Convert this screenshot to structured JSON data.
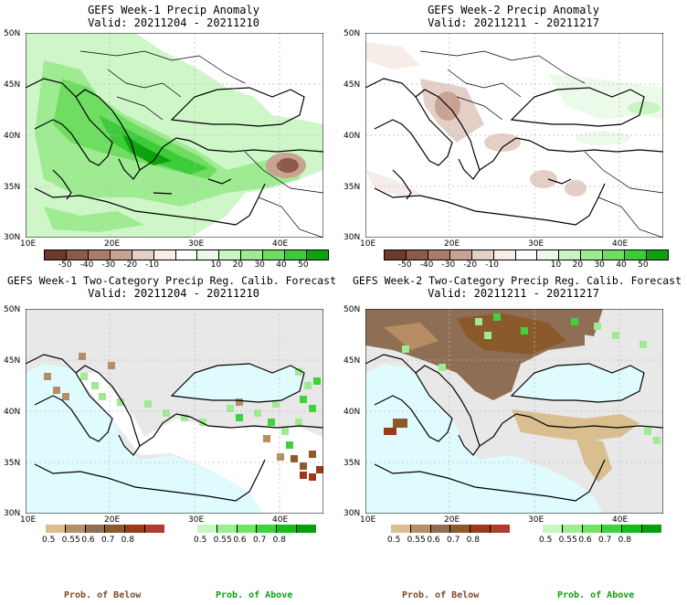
{
  "panels": [
    {
      "title": "GEFS Week-1 Precip Anomaly",
      "valid": "Valid: 20211204 - 20211210"
    },
    {
      "title": "GEFS Week-2 Precip Anomaly",
      "valid": "Valid: 20211211 - 20211217"
    },
    {
      "title": "GEFS Week-1 Two-Category Precip Reg. Calib. Forecast",
      "valid": "Valid: 20211204 - 20211210"
    },
    {
      "title": "GEFS Week-2 Two-Category Precip Reg. Calib. Forecast",
      "valid": "Valid: 20211211 - 20211217"
    }
  ],
  "axes": {
    "lat_labels": [
      "50N",
      "45N",
      "40N",
      "35N",
      "30N"
    ],
    "lon_labels": [
      "10E",
      "20E",
      "30E",
      "40E"
    ]
  },
  "anomaly_colorbar": {
    "ticks": [
      "-50",
      "-40",
      "-30",
      "-20",
      "-10",
      "10",
      "20",
      "30",
      "40",
      "50"
    ],
    "colors": [
      "#6b3a2a",
      "#8b5a48",
      "#a97c6a",
      "#c8a393",
      "#e4cfc6",
      "#f6ece8",
      "#ffffff",
      "#ecfbe9",
      "#c9f5c2",
      "#9eeb91",
      "#6fdd62",
      "#3ecb3a",
      "#0fa20f"
    ]
  },
  "prob_colorbar_below": {
    "ticks": [
      "0.5",
      "0.55",
      "0.6",
      "0.7",
      "0.8"
    ],
    "colors": [
      "#d9bf8f",
      "#b78d63",
      "#8e6e55",
      "#8b5a2b",
      "#9a3a1a",
      "#b23a2e"
    ]
  },
  "prob_colorbar_above": {
    "ticks": [
      "0.5",
      "0.55",
      "0.6",
      "0.7",
      "0.8"
    ],
    "colors": [
      "#c7f7c0",
      "#9cef91",
      "#6fe364",
      "#3fd33b",
      "#17bb1a",
      "#07a00d"
    ]
  },
  "footer": {
    "below_label": "Prob. of Below",
    "above_label": "Prob. of Above",
    "below_color": "#7a4a2a",
    "above_color": "#11a011"
  }
}
